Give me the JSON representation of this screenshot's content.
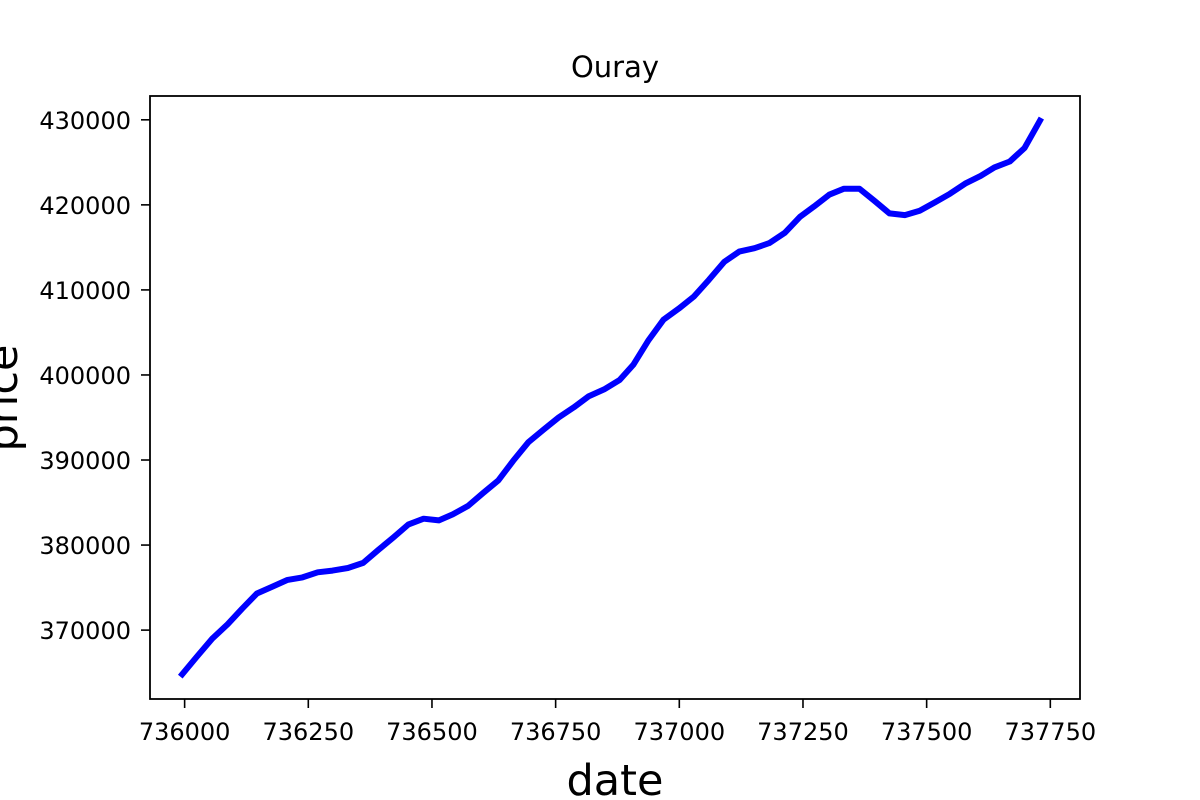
{
  "chart_data": {
    "type": "line",
    "title": "Ouray",
    "xlabel": "date",
    "ylabel": "price",
    "xlim": [
      735930,
      737810
    ],
    "ylim": [
      361900,
      432800
    ],
    "xticks": [
      736000,
      736250,
      736500,
      736750,
      737000,
      737250,
      737500,
      737750
    ],
    "yticks": [
      370000,
      380000,
      390000,
      400000,
      410000,
      420000,
      430000
    ],
    "grid": false,
    "series": [
      {
        "color": "#0000ff",
        "x": [
          735995,
          736025,
          736056,
          736087,
          736116,
          736146,
          736177,
          736208,
          736238,
          736269,
          736299,
          736330,
          736361,
          736391,
          736422,
          736452,
          736483,
          736514,
          736542,
          736573,
          736603,
          736634,
          736664,
          736695,
          736726,
          736756,
          736787,
          736817,
          736848,
          736879,
          736907,
          736938,
          736968,
          736999,
          737029,
          737060,
          737091,
          737121,
          737152,
          737182,
          737213,
          737244,
          737272,
          737303,
          737333,
          737364,
          737394,
          737425,
          737456,
          737486,
          737517,
          737547,
          737578,
          737609,
          737637,
          737668,
          737698,
          737729
        ],
        "y": [
          364800,
          366900,
          369000,
          370700,
          372500,
          374300,
          375100,
          375900,
          376200,
          376800,
          377000,
          377300,
          377900,
          379400,
          380900,
          382400,
          383100,
          382900,
          383600,
          384600,
          386100,
          387600,
          389900,
          392100,
          393600,
          395000,
          396200,
          397500,
          398300,
          399400,
          401200,
          404100,
          406500,
          407800,
          409200,
          411200,
          413300,
          414500,
          414900,
          415500,
          416700,
          418600,
          419800,
          421200,
          421900,
          421900,
          420500,
          419000,
          418800,
          419300,
          420300,
          421300,
          422500,
          423400,
          424400,
          425100,
          426700,
          429900
        ]
      }
    ]
  }
}
